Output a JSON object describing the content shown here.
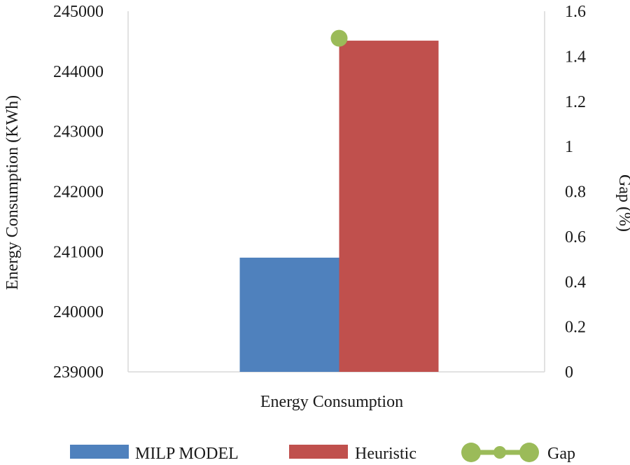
{
  "chart_data": {
    "type": "bar",
    "title": "",
    "categories": [
      "Energy Consumption"
    ],
    "xlabel": "",
    "ylabel": "Energy Consumption (KWh)",
    "y2label": "Gap (%)",
    "ylim": [
      239000,
      245000
    ],
    "y2lim": [
      0,
      1.6
    ],
    "yticks": [
      "239000",
      "240000",
      "241000",
      "242000",
      "243000",
      "244000",
      "245000"
    ],
    "y2ticks": [
      "0",
      "0.2",
      "0.4",
      "0.6",
      "0.8",
      "1",
      "1.2",
      "1.4",
      "1.6"
    ],
    "series": [
      {
        "name": "MILP MODEL",
        "axis": "left",
        "kind": "bar",
        "values": [
          240900
        ],
        "color": "#4f81bd"
      },
      {
        "name": "Heuristic",
        "axis": "left",
        "kind": "bar",
        "values": [
          244510
        ],
        "color": "#c0504d"
      },
      {
        "name": "Gap",
        "axis": "right",
        "kind": "line-marker",
        "values": [
          1.48
        ],
        "color": "#9bbb59"
      }
    ],
    "legend_position": "bottom",
    "grid": "none"
  }
}
